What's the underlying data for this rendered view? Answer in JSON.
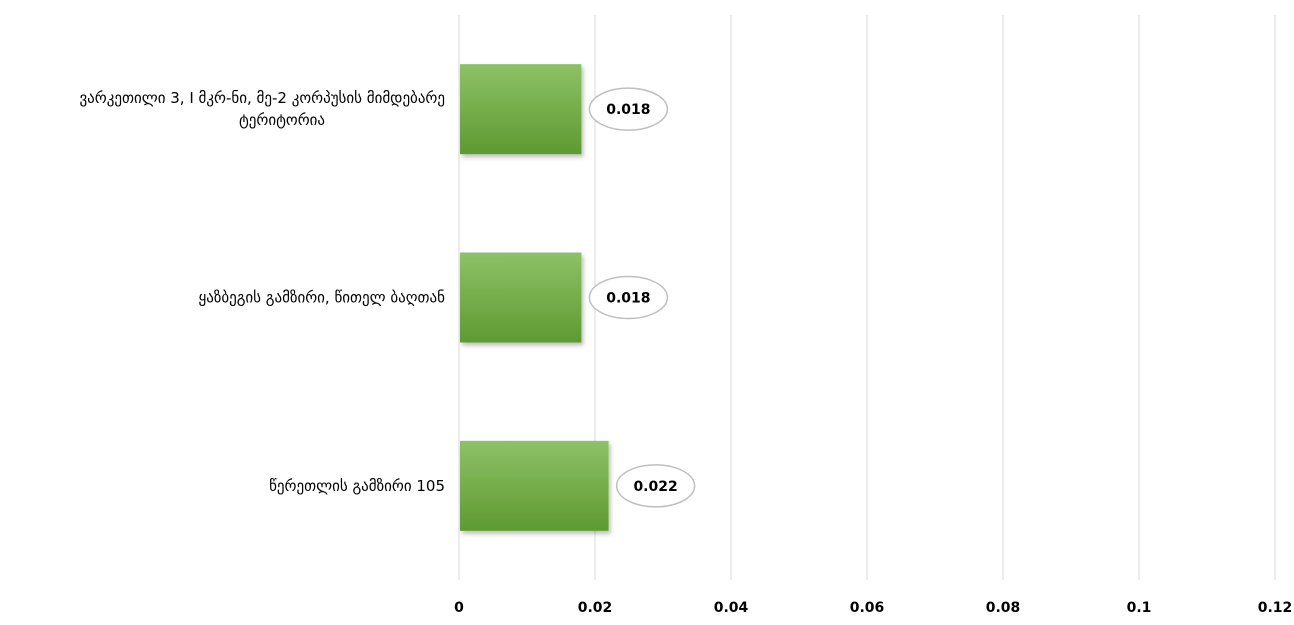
{
  "chart_data": {
    "type": "bar",
    "orientation": "horizontal",
    "categories": [
      "ვარკეთილი 3, I მკრ-ნი, მე-2 კორპუსის მიმდებარე ტერიტორია",
      "ყაზბეგის გამზირი, წითელ ბაღთან",
      "წერეთლის გამზირი 105"
    ],
    "values": [
      0.018,
      0.018,
      0.022
    ],
    "data_labels": [
      "0.018",
      "0.018",
      "0.022"
    ],
    "x_ticks": [
      "0",
      "0.02",
      "0.04",
      "0.06",
      "0.08",
      "0.1",
      "0.12"
    ],
    "xlim": [
      0,
      0.12
    ],
    "grid": true,
    "legend": "none",
    "title": "",
    "xlabel": "",
    "ylabel": ""
  },
  "colors": {
    "bar_light": "#8dc166",
    "bar_dark": "#5e9a32",
    "gridline": "#d9d9d9",
    "label_border": "#bfbfbf"
  }
}
